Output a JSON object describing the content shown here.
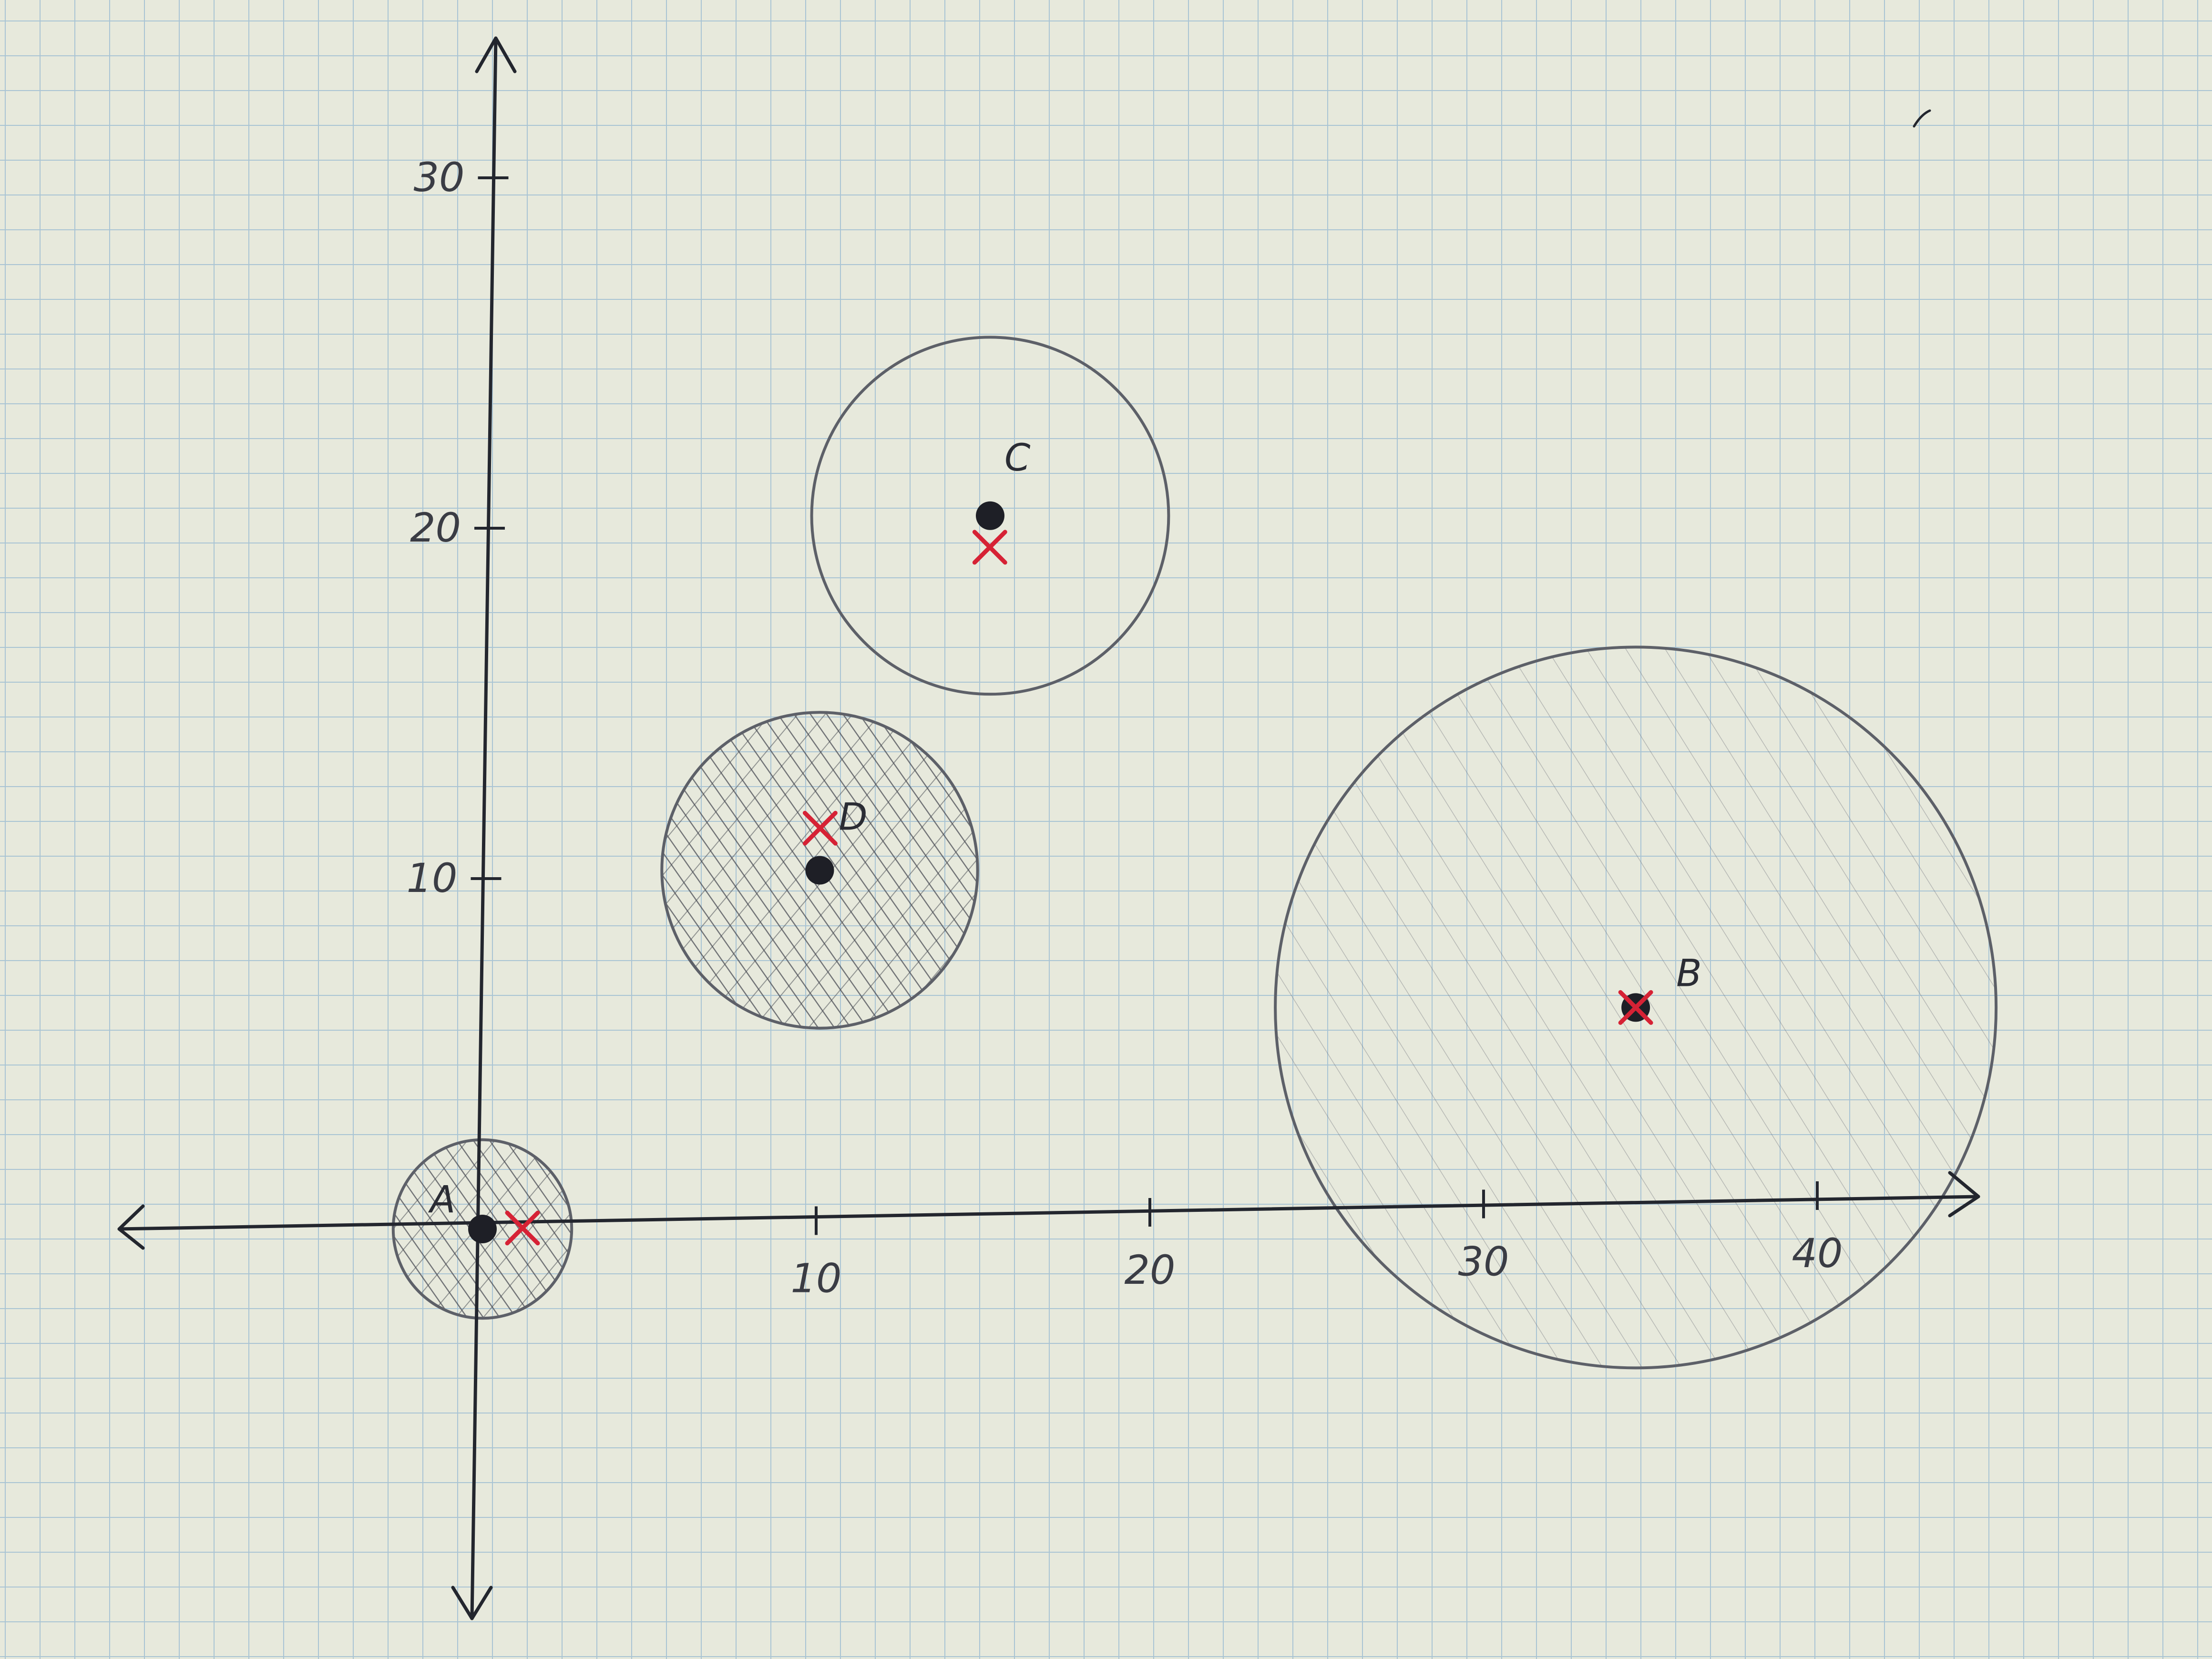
{
  "diagram": {
    "x_ticks": [
      {
        "value": 10,
        "label": "10"
      },
      {
        "value": 20,
        "label": "20"
      },
      {
        "value": 30,
        "label": "30"
      },
      {
        "value": 40,
        "label": "40"
      }
    ],
    "y_ticks": [
      {
        "value": 10,
        "label": "10"
      },
      {
        "value": 20,
        "label": "20"
      },
      {
        "value": 30,
        "label": "30"
      }
    ],
    "points": [
      {
        "id": "A",
        "label": "A",
        "x": 0,
        "y": 0,
        "estimate_x": 1.2,
        "estimate_y": 0,
        "radius": 2.6,
        "shading": "dense"
      },
      {
        "id": "D",
        "label": "D",
        "x": 10,
        "y": 10,
        "estimate_x": 10,
        "estimate_y": 11.2,
        "radius": 4.6,
        "shading": "dense"
      },
      {
        "id": "C",
        "label": "C",
        "x": 15,
        "y": 20,
        "estimate_x": 15,
        "estimate_y": 19.1,
        "radius": 5.2,
        "shading": "none"
      },
      {
        "id": "B",
        "label": "B",
        "x": 34.5,
        "y": 5.5,
        "estimate_x": 34.5,
        "estimate_y": 5.5,
        "radius": 10.5,
        "shading": "light"
      }
    ],
    "colors": {
      "paper": "#e7e9dc",
      "grid": "#a9c4d4",
      "ink": "#23262e",
      "estimate": "#d62235",
      "hatch": "#4a4d55"
    }
  }
}
